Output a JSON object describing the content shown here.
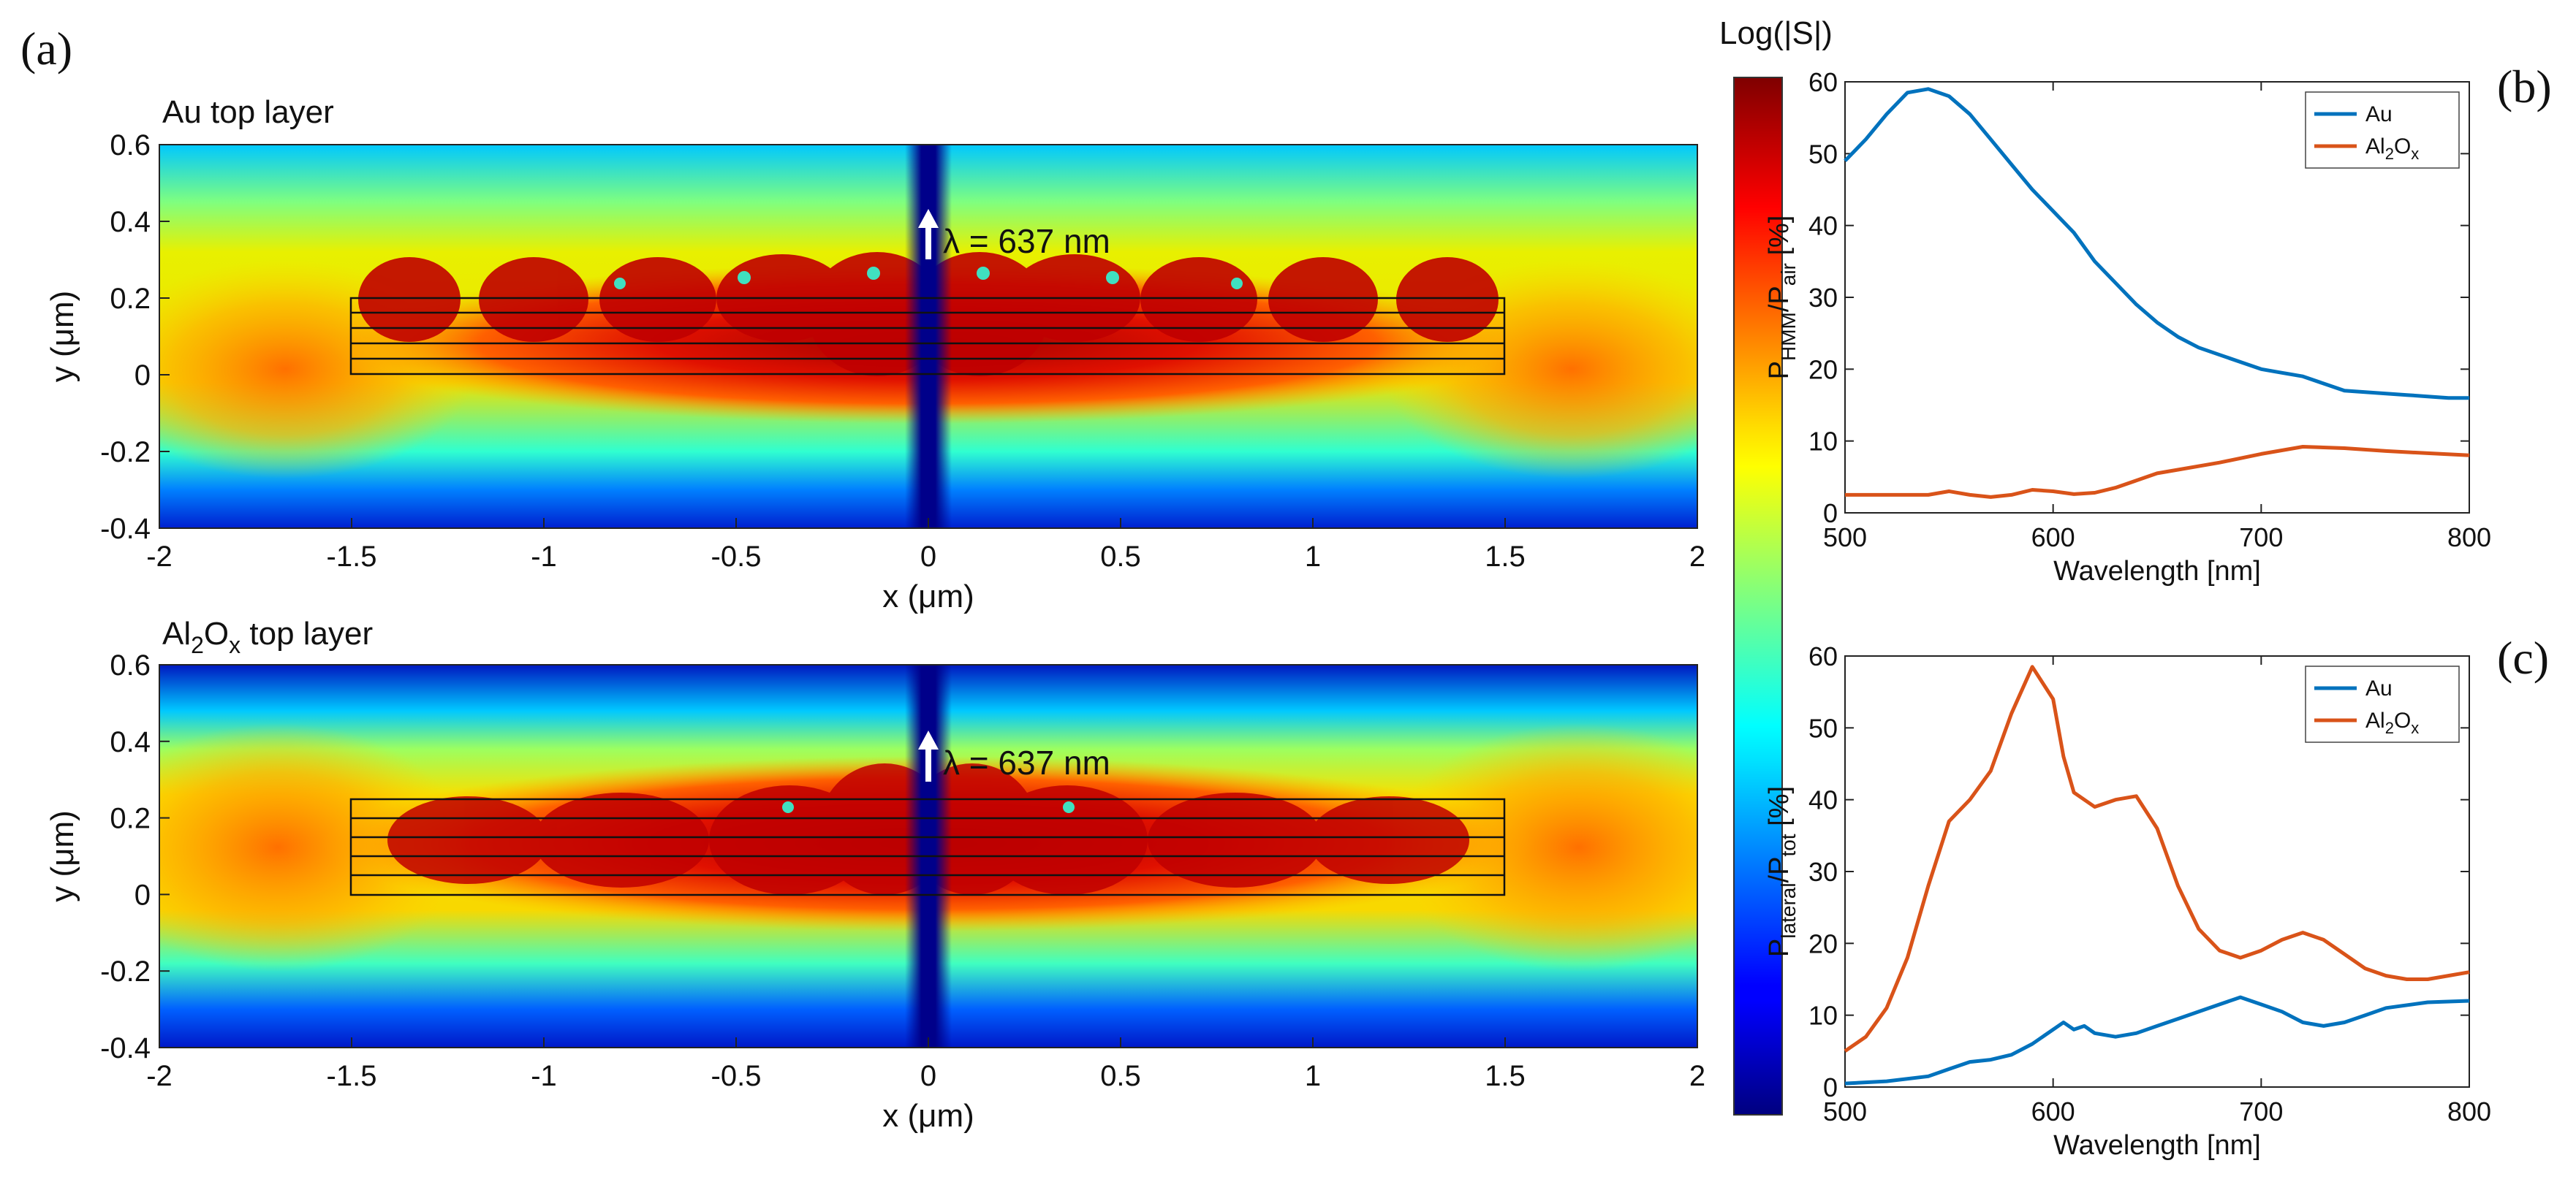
{
  "figure": {
    "panels": [
      "(a)",
      "(b)",
      "(c)"
    ],
    "colorbar": {
      "label": "Log(|S|)",
      "colormap": "jet"
    },
    "arrow_label": "λ = 637 nm",
    "field_maps": [
      {
        "id": "a-top",
        "title": "Au top layer",
        "title_parts": [
          "Au top layer"
        ]
      },
      {
        "id": "a-bottom",
        "title": "Al2Ox top layer",
        "title_parts": [
          "Al",
          "2",
          "O",
          "x",
          " top layer"
        ]
      }
    ],
    "map_axes": {
      "xlabel": "x (μm)",
      "ylabel": "y (μm)",
      "xlim": [
        -2,
        2
      ],
      "ylim": [
        -0.4,
        0.6
      ],
      "xticks": [
        "-2",
        "-1.5",
        "-1",
        "-0.5",
        "0",
        "0.5",
        "1",
        "1.5",
        "2"
      ],
      "yticks": [
        "-0.4",
        "-0.2",
        "0",
        "0.2",
        "0.4",
        "0.6"
      ]
    }
  },
  "chart_data": [
    {
      "id": "b",
      "type": "line",
      "panel": "(b)",
      "xlabel": "Wavelength [nm]",
      "ylabel": "P_HMM/P_air [%]",
      "xlim": [
        500,
        800
      ],
      "ylim": [
        0,
        60
      ],
      "xticks": [
        "500",
        "600",
        "700",
        "800"
      ],
      "yticks": [
        "0",
        "10",
        "20",
        "30",
        "40",
        "50",
        "60"
      ],
      "legend": "top-right",
      "series": [
        {
          "name": "Au",
          "color": "#0072BD",
          "x": [
            500,
            510,
            520,
            530,
            540,
            550,
            560,
            570,
            580,
            590,
            600,
            610,
            620,
            630,
            640,
            650,
            660,
            670,
            680,
            690,
            700,
            710,
            720,
            730,
            740,
            750,
            760,
            770,
            780,
            790,
            800
          ],
          "y": [
            49,
            52,
            55.5,
            58.5,
            59,
            58,
            55.5,
            52,
            48.5,
            45,
            42,
            39,
            35,
            32,
            29,
            26.5,
            24.5,
            23,
            22,
            21,
            20,
            19.5,
            19,
            18,
            17,
            16.8,
            16.6,
            16.4,
            16.2,
            16,
            16
          ]
        },
        {
          "name": "Al2Ox",
          "color": "#D95319",
          "x": [
            500,
            520,
            540,
            550,
            560,
            570,
            580,
            590,
            600,
            610,
            620,
            630,
            640,
            650,
            660,
            680,
            700,
            720,
            740,
            760,
            780,
            800
          ],
          "y": [
            2.5,
            2.5,
            2.5,
            3,
            2.5,
            2.2,
            2.5,
            3.2,
            3,
            2.6,
            2.8,
            3.5,
            4.5,
            5.5,
            6,
            7,
            8.2,
            9.2,
            9,
            8.6,
            8.3,
            8
          ]
        }
      ]
    },
    {
      "id": "c",
      "type": "line",
      "panel": "(c)",
      "xlabel": "Wavelength [nm]",
      "ylabel": "P_lateral/P_tot [%]",
      "xlim": [
        500,
        800
      ],
      "ylim": [
        0,
        60
      ],
      "xticks": [
        "500",
        "600",
        "700",
        "800"
      ],
      "yticks": [
        "0",
        "10",
        "20",
        "30",
        "40",
        "50",
        "60"
      ],
      "legend": "top-right",
      "series": [
        {
          "name": "Au",
          "color": "#0072BD",
          "x": [
            500,
            520,
            540,
            550,
            560,
            570,
            580,
            590,
            600,
            605,
            610,
            615,
            620,
            630,
            640,
            650,
            660,
            670,
            680,
            690,
            700,
            710,
            720,
            730,
            740,
            750,
            760,
            780,
            800
          ],
          "y": [
            0.5,
            0.8,
            1.5,
            2.5,
            3.5,
            3.8,
            4.5,
            6,
            8,
            9,
            8,
            8.5,
            7.5,
            7,
            7.5,
            8.5,
            9.5,
            10.5,
            11.5,
            12.5,
            11.5,
            10.5,
            9,
            8.5,
            9,
            10,
            11,
            11.8,
            12
          ]
        },
        {
          "name": "Al2Ox",
          "color": "#D95319",
          "x": [
            500,
            510,
            520,
            530,
            540,
            550,
            560,
            570,
            580,
            590,
            600,
            605,
            610,
            620,
            630,
            640,
            650,
            660,
            670,
            680,
            690,
            700,
            710,
            720,
            730,
            740,
            750,
            760,
            770,
            780,
            790,
            800
          ],
          "y": [
            5,
            7,
            11,
            18,
            28,
            37,
            40,
            44,
            52,
            58.5,
            54,
            46,
            41,
            39,
            40,
            40.5,
            36,
            28,
            22,
            19,
            18,
            19,
            20.5,
            21.5,
            20.5,
            18.5,
            16.5,
            15.5,
            15,
            15,
            15.5,
            16
          ]
        }
      ]
    }
  ]
}
